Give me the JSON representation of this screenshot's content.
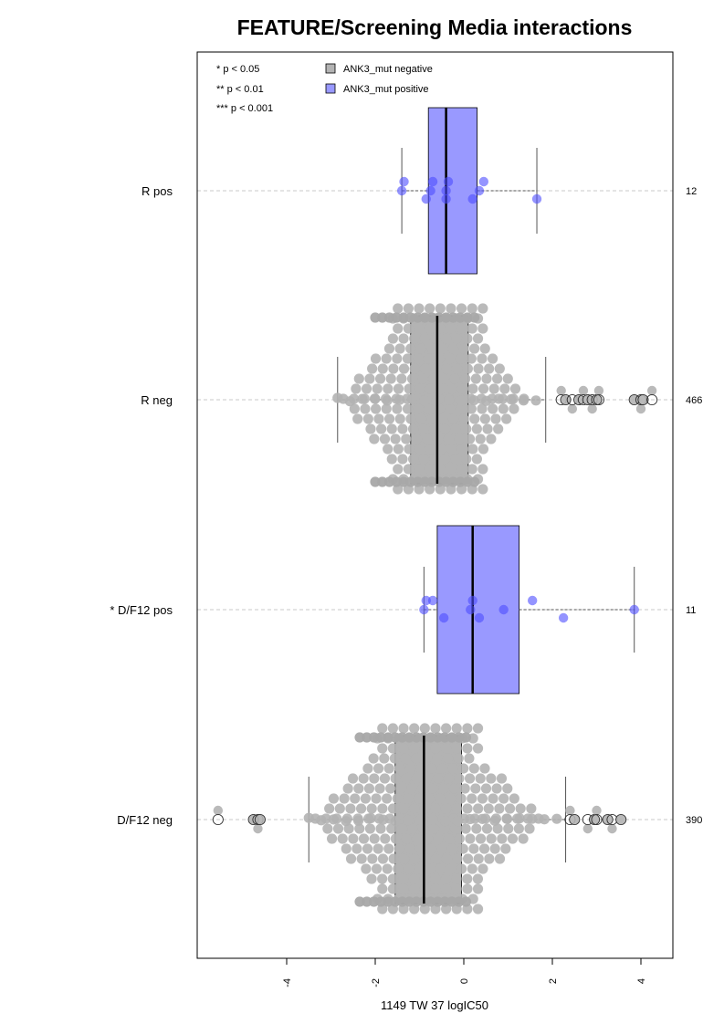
{
  "chart_data": {
    "type": "boxplot",
    "title": "FEATURE/Screening Media interactions",
    "xlabel": "1149 TW 37 logIC50",
    "xlim": [
      -6,
      4.7
    ],
    "x_ticks": [
      -4,
      -2,
      0,
      2,
      4
    ],
    "x_tick_labels": [
      "-4",
      "-2",
      "0",
      "2",
      "4"
    ],
    "significance_notes": [
      "* p < 0.05",
      "** p < 0.01",
      "*** p < 0.001"
    ],
    "legend": [
      {
        "label": "ANK3_mut negative",
        "color": "#b3b3b3"
      },
      {
        "label": "ANK3_mut positive",
        "color": "#9999ff"
      }
    ],
    "groups": [
      {
        "label": "R pos",
        "n": "12",
        "mut": "positive",
        "stats": {
          "whisker_low": -1.4,
          "q1": -0.8,
          "median": -0.4,
          "q3": 0.3,
          "whisker_high": 1.65
        },
        "points": [
          -1.4,
          -1.35,
          -0.85,
          -0.75,
          -0.7,
          -0.4,
          -0.4,
          -0.35,
          0.2,
          0.35,
          0.45,
          1.65
        ],
        "outliers": []
      },
      {
        "label": "R neg",
        "n": "466",
        "mut": "negative",
        "stats": {
          "whisker_low": -2.85,
          "q1": -1.2,
          "median": -0.6,
          "q3": 0.1,
          "whisker_high": 1.85
        },
        "points": [],
        "outliers": [
          2.2,
          2.3,
          2.45,
          2.6,
          2.7,
          2.8,
          2.9,
          3.0,
          3.05,
          3.85,
          4.0,
          4.05,
          4.25
        ]
      },
      {
        "label": "* D/F12 pos",
        "n": "11",
        "mut": "positive",
        "stats": {
          "whisker_low": -0.9,
          "q1": -0.6,
          "median": 0.2,
          "q3": 1.25,
          "whisker_high": 3.85
        },
        "points": [
          -0.9,
          -0.7,
          -0.45,
          0.15,
          0.2,
          0.35,
          0.9,
          1.55,
          2.25,
          3.85,
          -0.85
        ],
        "outliers": []
      },
      {
        "label": "D/F12 neg",
        "n": "390",
        "mut": "negative",
        "stats": {
          "whisker_low": -3.5,
          "q1": -1.55,
          "median": -0.9,
          "q3": -0.05,
          "whisker_high": 2.3
        },
        "points": [],
        "outliers": [
          -5.55,
          -4.75,
          -4.65,
          -4.6,
          2.4,
          2.5,
          2.8,
          2.95,
          3.0,
          3.25,
          3.35,
          3.55
        ]
      }
    ]
  }
}
